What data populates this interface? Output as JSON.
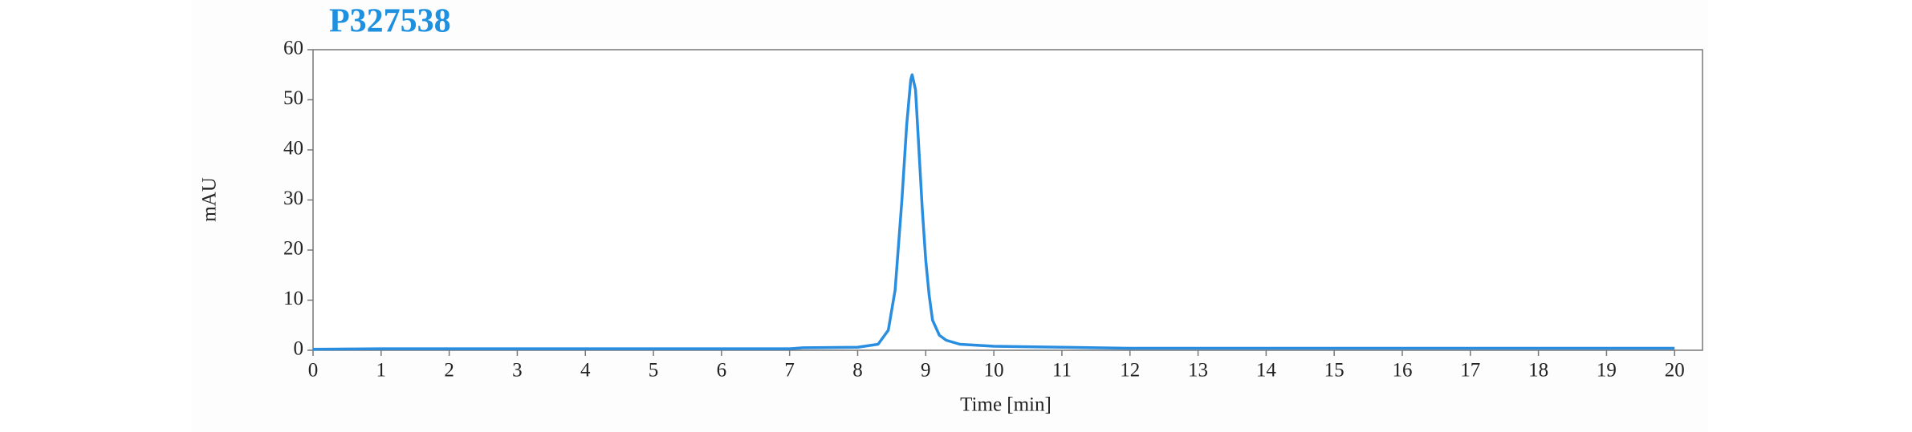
{
  "chart_data": {
    "type": "line",
    "title": "P327538",
    "x_label": "Time [min]",
    "y_label": "mAU",
    "color": "#2a8ee0",
    "x": [
      0,
      1,
      2,
      3,
      4,
      5,
      6,
      7,
      7.2,
      8.0,
      8.3,
      8.45,
      8.55,
      8.65,
      8.72,
      8.78,
      8.8,
      8.85,
      8.9,
      8.95,
      9.0,
      9.05,
      9.1,
      9.2,
      9.3,
      9.5,
      10,
      11,
      12,
      13,
      14,
      15,
      16,
      17,
      18,
      19,
      20
    ],
    "values": [
      0.2,
      0.3,
      0.3,
      0.3,
      0.3,
      0.3,
      0.3,
      0.3,
      0.5,
      0.6,
      1.2,
      4,
      12,
      30,
      45,
      54,
      55,
      52,
      40,
      28,
      18,
      11,
      6,
      3,
      2,
      1.2,
      0.8,
      0.6,
      0.4,
      0.4,
      0.4,
      0.4,
      0.4,
      0.4,
      0.4,
      0.4,
      0.4
    ],
    "xlim": [
      0,
      20.41
    ],
    "ylim": [
      0,
      60
    ],
    "xticks": [
      0,
      1,
      2,
      3,
      4,
      5,
      6,
      7,
      8,
      9,
      10,
      11,
      12,
      13,
      14,
      15,
      16,
      17,
      18,
      19,
      20
    ],
    "yticks": [
      0,
      10,
      20,
      30,
      40,
      50,
      60
    ],
    "grid": false
  }
}
